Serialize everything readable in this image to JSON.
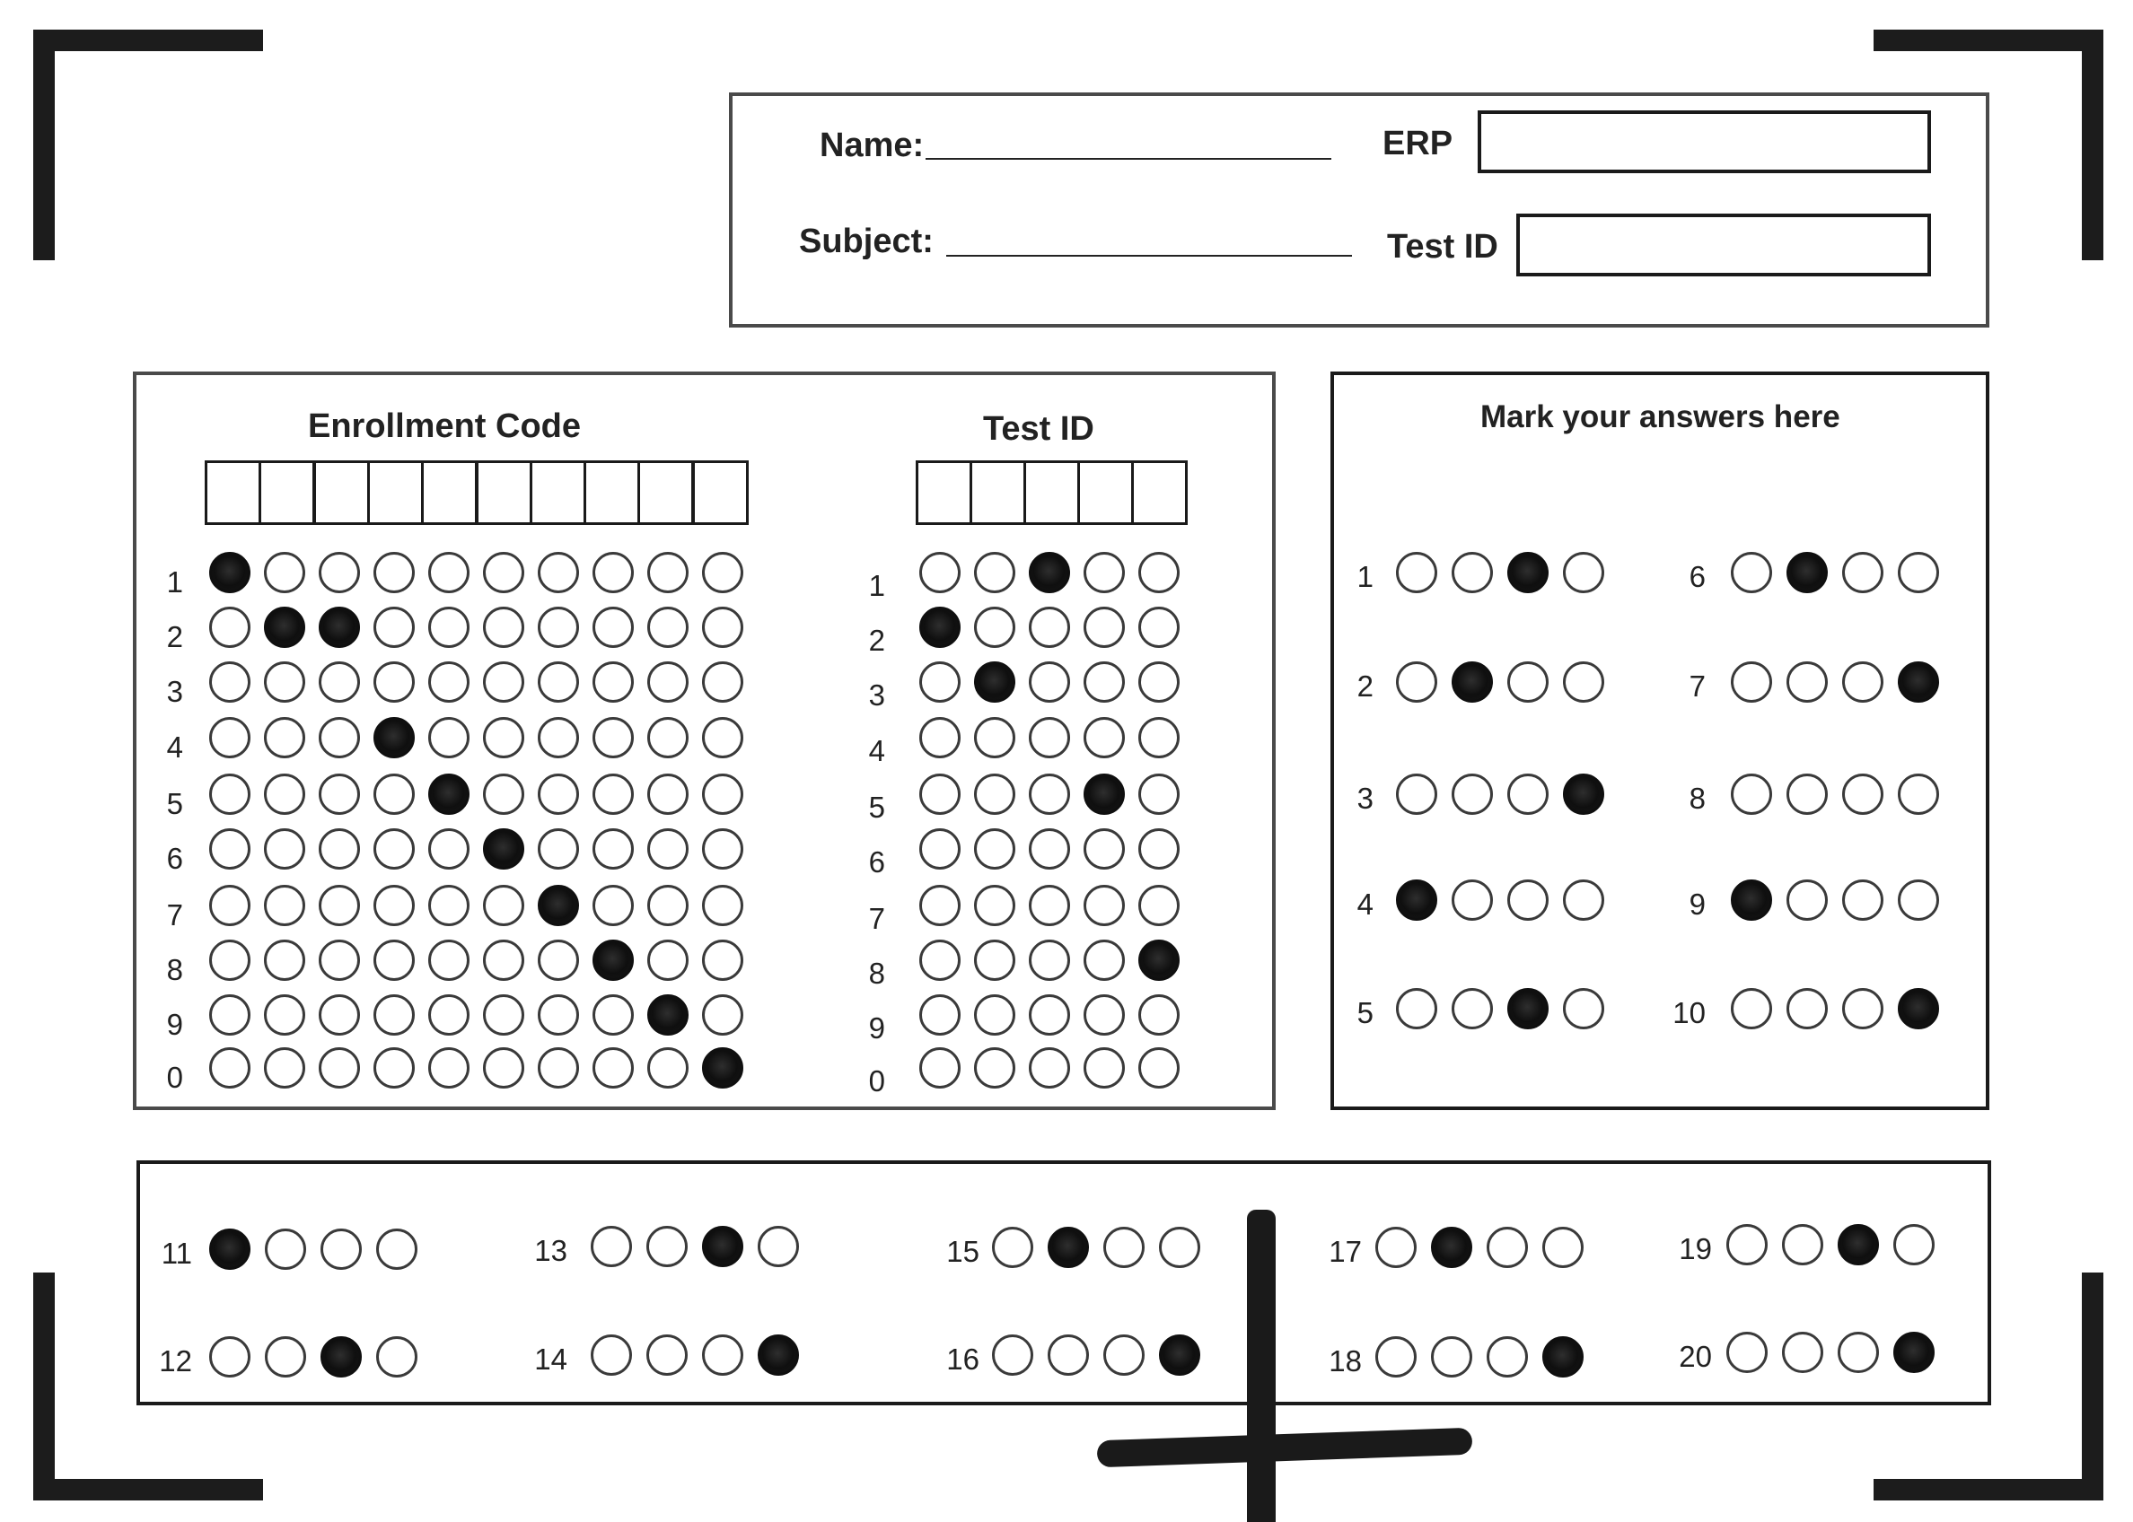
{
  "header": {
    "name_label": "Name:",
    "subject_label": "Subject:",
    "erp_label": "ERP",
    "test_id_label": "Test ID"
  },
  "enrollment": {
    "title": "Enrollment Code",
    "digit_labels": [
      "1",
      "2",
      "3",
      "4",
      "5",
      "6",
      "7",
      "8",
      "9",
      "0"
    ],
    "filled": [
      [
        0
      ],
      [
        1,
        2
      ],
      [],
      [
        3
      ],
      [
        4
      ],
      [
        5
      ],
      [
        6
      ],
      [
        7
      ],
      [
        8
      ],
      [
        9
      ]
    ]
  },
  "test_id_grid": {
    "title": "Test ID",
    "digit_labels": [
      "1",
      "2",
      "3",
      "4",
      "5",
      "6",
      "7",
      "8",
      "9",
      "0"
    ],
    "filled": [
      [
        2
      ],
      [
        0
      ],
      [
        1
      ],
      [],
      [
        3
      ],
      [],
      [],
      [
        4
      ],
      [],
      []
    ]
  },
  "answers": {
    "title": "Mark your answers here",
    "question_numbers": [
      "1",
      "2",
      "3",
      "4",
      "5",
      "6",
      "7",
      "8",
      "9",
      "10",
      "11",
      "12",
      "13",
      "14",
      "15",
      "16",
      "17",
      "18",
      "19",
      "20"
    ],
    "marked_option_index": [
      2,
      1,
      3,
      0,
      2,
      1,
      3,
      null,
      0,
      3,
      0,
      2,
      2,
      3,
      1,
      3,
      1,
      3,
      2,
      3
    ]
  },
  "colors": {
    "ink": "#111111",
    "outline": "#3a3a3a",
    "paper": "#ffffff"
  }
}
